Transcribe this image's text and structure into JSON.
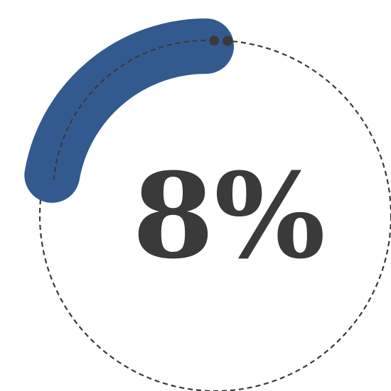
{
  "gauge": {
    "value": 8,
    "display": "8%",
    "colors": {
      "progress": "#335a8e",
      "track": "#3a3a3a",
      "text": "#3a3a3a"
    }
  }
}
